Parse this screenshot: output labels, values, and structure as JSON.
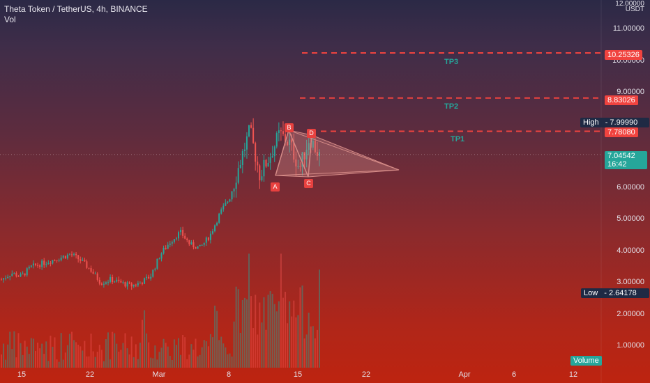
{
  "header": {
    "title": "Theta Token / TetherUS, 4h, BINANCE",
    "sub": "Vol"
  },
  "axis": {
    "currency": "USDT",
    "top_partial": "12.00000"
  },
  "price_ticks": [
    "11.00000",
    "10.00000",
    "9.00000",
    "6.00000",
    "5.00000",
    "4.00000",
    "3.00000",
    "2.00000",
    "1.00000"
  ],
  "date_ticks": [
    "15",
    "22",
    "Mar",
    "8",
    "15",
    "22",
    "Apr",
    "6",
    "12"
  ],
  "tags": {
    "tp3": "10.25326",
    "tp2": "8.83026",
    "tp1": "7.78080",
    "high_label": "High",
    "high_value": "7.99990",
    "last_price": "7.04542",
    "countdown": "16:42",
    "low_label": "Low",
    "low_value": "2.64178",
    "volume": "Volume"
  },
  "targets": [
    {
      "name": "TP3",
      "price": 10.25326
    },
    {
      "name": "TP2",
      "price": 8.83026
    },
    {
      "name": "TP1",
      "price": 7.7808
    }
  ],
  "pattern_points": [
    "A",
    "B",
    "C",
    "D"
  ],
  "colors": {
    "up": "#26a69a",
    "down": "#ef5350",
    "target": "#f0433f",
    "triangle": "#d48a86",
    "tag_dark": "#1f2a44"
  },
  "chart_data": {
    "type": "candlestick",
    "title": "Theta Token / TetherUS, 4h, BINANCE",
    "ylabel": "USDT",
    "ylim": [
      0,
      12
    ],
    "x_ticks": [
      "15",
      "22",
      "Mar",
      "8",
      "15",
      "22",
      "Apr",
      "6",
      "12"
    ],
    "series": [
      {
        "name": "Vol",
        "type": "bar"
      }
    ],
    "price_path": [
      3.1,
      3.3,
      3.2,
      3.5,
      3.6,
      3.7,
      3.8,
      3.9,
      3.7,
      3.4,
      3.0,
      3.1,
      3.0,
      2.9,
      3.0,
      3.2,
      3.9,
      4.3,
      4.6,
      4.2,
      4.1,
      4.5,
      5.2,
      5.7,
      6.8,
      7.8,
      6.4,
      7.0,
      7.7,
      7.4,
      6.6,
      7.6,
      7.0
    ],
    "high": 7.9999,
    "low": 2.64178,
    "last": 7.04542,
    "targets": [
      {
        "label": "TP1",
        "value": 7.7808
      },
      {
        "label": "TP2",
        "value": 8.83026
      },
      {
        "label": "TP3",
        "value": 10.25326
      }
    ]
  }
}
